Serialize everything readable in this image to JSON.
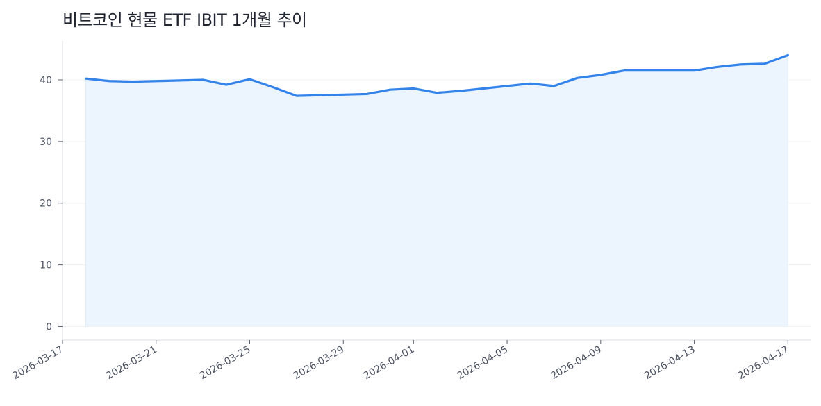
{
  "title": "비트코인 현물 ETF IBIT 1개월 추이",
  "colors": {
    "line": "#3383ea",
    "area": "#ebf3fe",
    "grid": "#eef0f3",
    "axis": "#d9dde3",
    "tick_text": "#4a5160"
  },
  "chart_data": {
    "type": "area",
    "title": "비트코인 현물 ETF IBIT 1개월 추이",
    "xlabel": "",
    "ylabel": "",
    "ylim": [
      -2.2,
      46.3
    ],
    "xlim": [
      "2026-03-17",
      "2026-04-18"
    ],
    "grid": "horizontal",
    "yticks": [
      0,
      10,
      20,
      30,
      40
    ],
    "xticks": [
      "2026-03-17",
      "2026-03-21",
      "2026-03-25",
      "2026-03-29",
      "2026-04-01",
      "2026-04-05",
      "2026-04-09",
      "2026-04-13",
      "2026-04-17"
    ],
    "x": [
      "2026-03-18",
      "2026-03-19",
      "2026-03-20",
      "2026-03-23",
      "2026-03-24",
      "2026-03-25",
      "2026-03-26",
      "2026-03-27",
      "2026-03-30",
      "2026-03-31",
      "2026-04-01",
      "2026-04-02",
      "2026-04-03",
      "2026-04-06",
      "2026-04-07",
      "2026-04-08",
      "2026-04-09",
      "2026-04-10",
      "2026-04-13",
      "2026-04-14",
      "2026-04-15",
      "2026-04-16",
      "2026-04-17"
    ],
    "values": [
      40.2,
      39.8,
      39.7,
      40.0,
      39.2,
      40.1,
      38.8,
      37.4,
      37.7,
      38.4,
      38.6,
      37.9,
      38.2,
      39.4,
      39.0,
      40.3,
      40.8,
      41.5,
      41.5,
      42.1,
      42.5,
      42.6,
      44.0
    ]
  }
}
